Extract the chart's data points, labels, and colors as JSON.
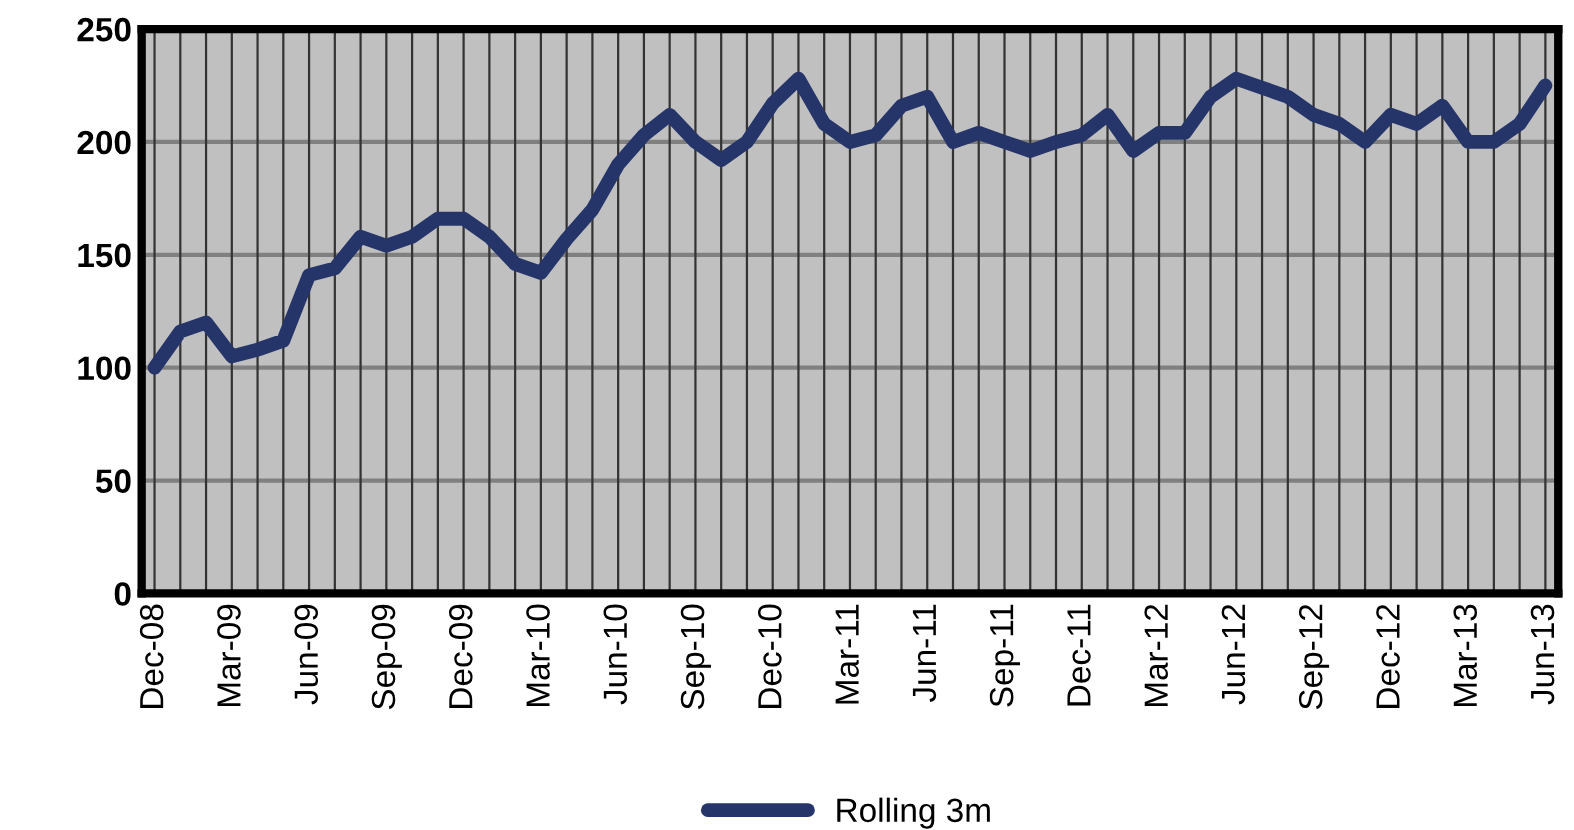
{
  "chart_data": {
    "type": "line",
    "categories": [
      "Dec-08",
      null,
      null,
      "Mar-09",
      null,
      null,
      "Jun-09",
      null,
      null,
      "Sep-09",
      null,
      null,
      "Dec-09",
      null,
      null,
      "Mar-10",
      null,
      null,
      "Jun-10",
      null,
      null,
      "Sep-10",
      null,
      null,
      "Dec-10",
      null,
      null,
      "Mar-11",
      null,
      null,
      "Jun-11",
      null,
      null,
      "Sep-11",
      null,
      null,
      "Dec-11",
      null,
      null,
      "Mar-12",
      null,
      null,
      "Jun-12",
      null,
      null,
      "Sep-12",
      null,
      null,
      "Dec-12",
      null,
      null,
      "Mar-13",
      null,
      null,
      "Jun-13"
    ],
    "series": [
      {
        "name": "Rolling 3m",
        "color": "#253569",
        "values": [
          100,
          116,
          120,
          105,
          108,
          112,
          141,
          144,
          158,
          154,
          158,
          166,
          166,
          158,
          146,
          142,
          157,
          170,
          190,
          203,
          212,
          200,
          192,
          200,
          217,
          228,
          208,
          200,
          203,
          216,
          220,
          200,
          204,
          200,
          196,
          200,
          203,
          212,
          196,
          204,
          204,
          220,
          228,
          224,
          220,
          212,
          208,
          200,
          212,
          208,
          216,
          200,
          200,
          208,
          225
        ]
      }
    ],
    "ylim": [
      0,
      250
    ],
    "yticks": [
      0,
      50,
      100,
      150,
      200,
      250
    ],
    "grid": true,
    "legend": "bottom",
    "marker": "none",
    "line_style": "solid"
  }
}
